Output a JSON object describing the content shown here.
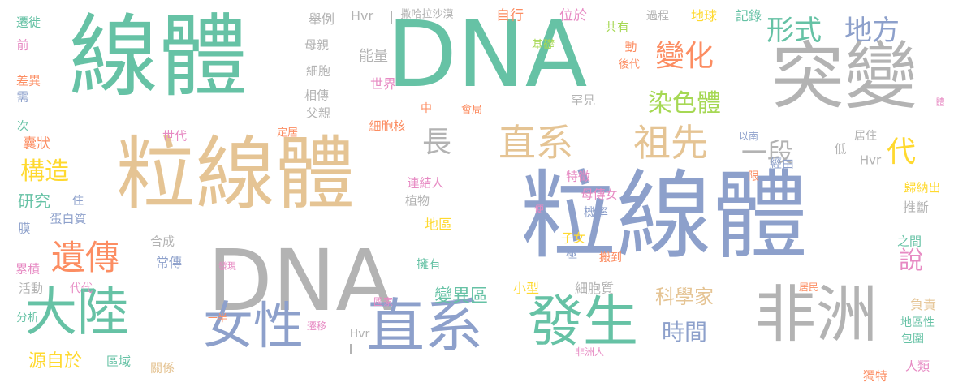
{
  "colors": {
    "green": "#66c2a5",
    "orange": "#fc8d62",
    "blue": "#8da0cb",
    "pink": "#e78ac3",
    "lime": "#a6d854",
    "yellow": "#ffd92f",
    "tan": "#e5c494",
    "gray": "#b3b3b3"
  },
  "words": [
    {
      "text": "線體",
      "color": "green",
      "weight": 100
    },
    {
      "text": "DNA",
      "color": "green",
      "weight": 98
    },
    {
      "text": "粒線體",
      "color": "blue",
      "weight": 96
    },
    {
      "text": "粒線體",
      "color": "tan",
      "weight": 88
    },
    {
      "text": "突變",
      "color": "gray",
      "weight": 80
    },
    {
      "text": "DNA",
      "color": "gray",
      "weight": 84
    },
    {
      "text": "非洲",
      "color": "gray",
      "weight": 62
    },
    {
      "text": "直系",
      "color": "blue",
      "weight": 60
    },
    {
      "text": "發生",
      "color": "green",
      "weight": 58
    },
    {
      "text": "女性",
      "color": "blue",
      "weight": 55
    },
    {
      "text": "大陸",
      "color": "green",
      "weight": 55
    },
    {
      "text": "直系",
      "color": "tan",
      "weight": 40
    },
    {
      "text": "祖先",
      "color": "tan",
      "weight": 40
    },
    {
      "text": "遺傳",
      "color": "orange",
      "weight": 36
    },
    {
      "text": "形式",
      "color": "green",
      "weight": 28
    },
    {
      "text": "地方",
      "color": "blue",
      "weight": 28
    },
    {
      "text": "變化",
      "color": "orange",
      "weight": 30
    },
    {
      "text": "染色體",
      "color": "lime",
      "weight": 26
    },
    {
      "text": "長",
      "color": "gray",
      "weight": 30
    },
    {
      "text": "一段",
      "color": "gray",
      "weight": 28
    },
    {
      "text": "代",
      "color": "yellow",
      "weight": 30
    },
    {
      "text": "構造",
      "color": "yellow",
      "weight": 26
    },
    {
      "text": "時間",
      "color": "blue",
      "weight": 24
    },
    {
      "text": "說",
      "color": "pink",
      "weight": 26
    },
    {
      "text": "科學家",
      "color": "tan",
      "weight": 20
    },
    {
      "text": "變異區",
      "color": "green",
      "weight": 20
    },
    {
      "text": "源自於",
      "color": "yellow",
      "weight": 18
    },
    {
      "text": "研究",
      "color": "green",
      "weight": 18
    },
    {
      "text": "舉例",
      "color": "gray",
      "weight": 14
    },
    {
      "text": "Hvr",
      "color": "gray",
      "weight": 14
    },
    {
      "text": "Hvr",
      "color": "gray",
      "weight": 13
    },
    {
      "text": "撒哈拉沙漠",
      "color": "gray",
      "weight": 11
    },
    {
      "text": "自行",
      "color": "orange",
      "weight": 14
    },
    {
      "text": "位於",
      "color": "pink",
      "weight": 14
    },
    {
      "text": "地球",
      "color": "yellow",
      "weight": 13
    },
    {
      "text": "記錄",
      "color": "green",
      "weight": 13
    },
    {
      "text": "過程",
      "color": "gray",
      "weight": 11
    },
    {
      "text": "共有",
      "color": "lime",
      "weight": 12
    },
    {
      "text": "基礎",
      "color": "lime",
      "weight": 12
    },
    {
      "text": "母親",
      "color": "gray",
      "weight": 12
    },
    {
      "text": "細胞",
      "color": "gray",
      "weight": 12
    },
    {
      "text": "能量",
      "color": "gray",
      "weight": 14
    },
    {
      "text": "世界",
      "color": "pink",
      "weight": 13
    },
    {
      "text": "動",
      "color": "orange",
      "weight": 12
    },
    {
      "text": "後代",
      "color": "orange",
      "weight": 11
    },
    {
      "text": "遷徙",
      "color": "green",
      "weight": 12
    },
    {
      "text": "前",
      "color": "pink",
      "weight": 12
    },
    {
      "text": "差異",
      "color": "orange",
      "weight": 12
    },
    {
      "text": "需",
      "color": "blue",
      "weight": 12
    },
    {
      "text": "次",
      "color": "green",
      "weight": 12
    },
    {
      "text": "囊狀",
      "color": "orange",
      "weight": 13
    },
    {
      "text": "相傳",
      "color": "gray",
      "weight": 12
    },
    {
      "text": "父親",
      "color": "gray",
      "weight": 12
    },
    {
      "text": "中",
      "color": "orange",
      "weight": 12
    },
    {
      "text": "會局",
      "color": "orange",
      "weight": 11
    },
    {
      "text": "罕見",
      "color": "gray",
      "weight": 12
    },
    {
      "text": "細胞核",
      "color": "orange",
      "weight": 12
    },
    {
      "text": "世代",
      "color": "pink",
      "weight": 12
    },
    {
      "text": "定居",
      "color": "orange",
      "weight": 11
    },
    {
      "text": "體",
      "color": "pink",
      "weight": 9
    },
    {
      "text": "以南",
      "color": "blue",
      "weight": 10
    },
    {
      "text": "居住",
      "color": "gray",
      "weight": 11
    },
    {
      "text": "低",
      "color": "gray",
      "weight": 12
    },
    {
      "text": "Hvr",
      "color": "gray",
      "weight": 12
    },
    {
      "text": "經由",
      "color": "blue",
      "weight": 12
    },
    {
      "text": "限",
      "color": "orange",
      "weight": 11
    },
    {
      "text": "歸納出",
      "color": "yellow",
      "weight": 12
    },
    {
      "text": "推斷",
      "color": "gray",
      "weight": 13
    },
    {
      "text": "之間",
      "color": "green",
      "weight": 12
    },
    {
      "text": "負責",
      "color": "tan",
      "weight": 13
    },
    {
      "text": "地區性",
      "color": "green",
      "weight": 12
    },
    {
      "text": "包圍",
      "color": "green",
      "weight": 12
    },
    {
      "text": "人類",
      "color": "pink",
      "weight": 12
    },
    {
      "text": "居民",
      "color": "orange",
      "weight": 10
    },
    {
      "text": "獨特",
      "color": "orange",
      "weight": 12
    },
    {
      "text": "連結人",
      "color": "pink",
      "weight": 12
    },
    {
      "text": "特徵",
      "color": "pink",
      "weight": 12
    },
    {
      "text": "母傳女",
      "color": "pink",
      "weight": 12
    },
    {
      "text": "植物",
      "color": "gray",
      "weight": 12
    },
    {
      "text": "機率",
      "color": "blue",
      "weight": 12
    },
    {
      "text": "便",
      "color": "pink",
      "weight": 10
    },
    {
      "text": "地區",
      "color": "yellow",
      "weight": 14
    },
    {
      "text": "子女",
      "color": "yellow",
      "weight": 12
    },
    {
      "text": "擁有",
      "color": "green",
      "weight": 12
    },
    {
      "text": "極",
      "color": "blue",
      "weight": 12
    },
    {
      "text": "搬到",
      "color": "orange",
      "weight": 12
    },
    {
      "text": "小型",
      "color": "yellow",
      "weight": 13
    },
    {
      "text": "細胞質",
      "color": "gray",
      "weight": 13
    },
    {
      "text": "國家",
      "color": "pink",
      "weight": 10
    },
    {
      "text": "遷移",
      "color": "pink",
      "weight": 10
    },
    {
      "text": "非洲人",
      "color": "pink",
      "weight": 10
    },
    {
      "text": "住",
      "color": "blue",
      "weight": 11
    },
    {
      "text": "蛋白質",
      "color": "blue",
      "weight": 12
    },
    {
      "text": "膜",
      "color": "blue",
      "weight": 12
    },
    {
      "text": "合成",
      "color": "gray",
      "weight": 12
    },
    {
      "text": "常傳",
      "color": "blue",
      "weight": 13
    },
    {
      "text": "發現",
      "color": "pink",
      "weight": 10
    },
    {
      "text": "累積",
      "color": "pink",
      "weight": 12
    },
    {
      "text": "活動",
      "color": "gray",
      "weight": 12
    },
    {
      "text": "代代",
      "color": "pink",
      "weight": 11
    },
    {
      "text": "分析",
      "color": "green",
      "weight": 11
    },
    {
      "text": "一半",
      "color": "orange",
      "weight": 10
    },
    {
      "text": "區域",
      "color": "green",
      "weight": 12
    },
    {
      "text": "關係",
      "color": "tan",
      "weight": 12
    }
  ]
}
